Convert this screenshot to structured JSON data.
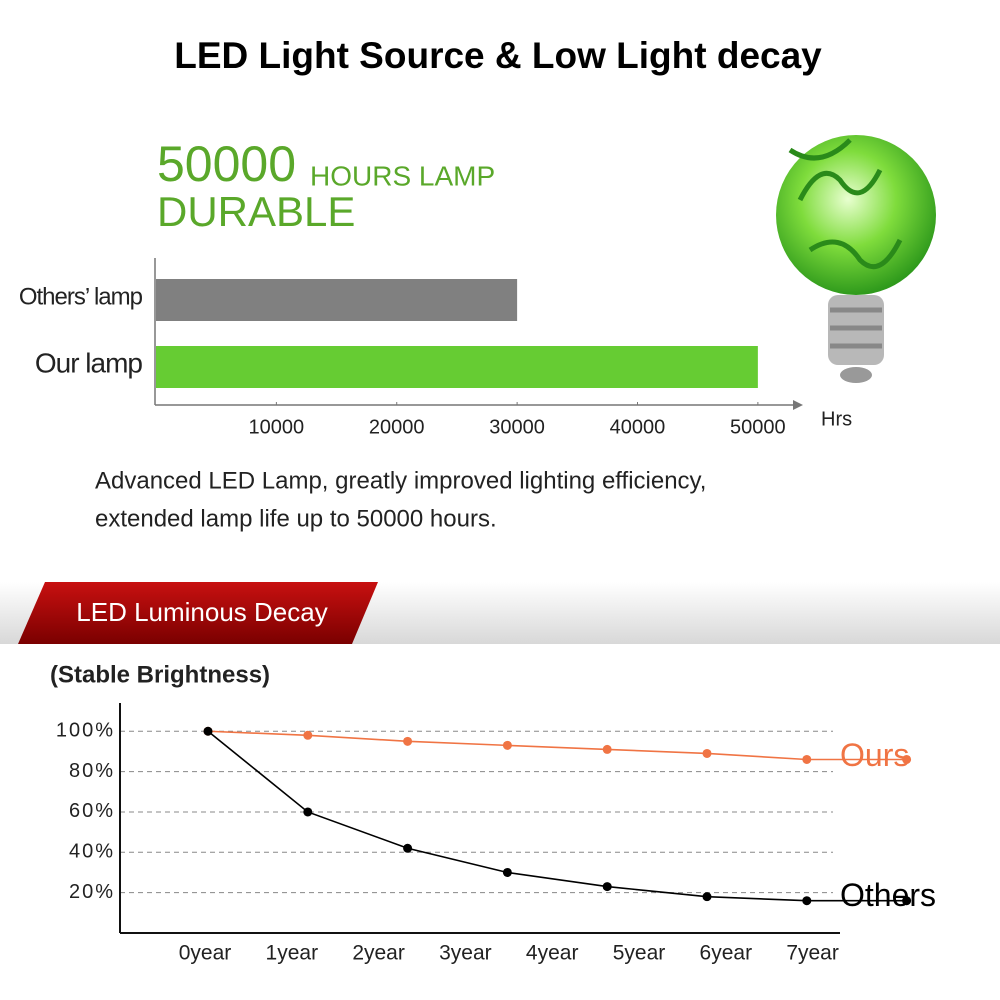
{
  "title": "LED Light Source & Low Light decay",
  "headline": {
    "number": "50000",
    "unit": "HOURS LAMP",
    "tag": "DURABLE"
  },
  "description": [
    "Advanced LED Lamp, greatly improved lighting efficiency,",
    "extended lamp life up to 50000 hours."
  ],
  "section_title": "LED Luminous Decay",
  "chart_data": [
    {
      "type": "hbar",
      "categories": [
        "Others’ lamp",
        "Our lamp"
      ],
      "values": [
        30000,
        50000
      ],
      "colors": [
        "#808080",
        "#66cc33"
      ],
      "xlim": [
        0,
        53500
      ],
      "xticks": [
        10000,
        20000,
        30000,
        40000,
        50000
      ],
      "x_label": "Hrs"
    },
    {
      "type": "line",
      "y_label": "(Stable Brightness)",
      "categories": [
        "0year",
        "1year",
        "2year",
        "3year",
        "4year",
        "5year",
        "6year",
        "7year"
      ],
      "ylim": [
        0,
        114
      ],
      "yticks": [
        {
          "value": 20,
          "label": "20%"
        },
        {
          "value": 40,
          "label": "40%"
        },
        {
          "value": 60,
          "label": "60%"
        },
        {
          "value": 80,
          "label": "80%"
        },
        {
          "value": 100,
          "label": "100%"
        }
      ],
      "grid": true,
      "series": [
        {
          "name": "Ours",
          "color": "#f07444",
          "values": [
            100,
            98,
            95,
            93,
            91,
            89,
            86,
            86
          ]
        },
        {
          "name": "Others",
          "color": "#000000",
          "values": [
            100,
            60,
            42,
            30,
            23,
            18,
            16,
            16
          ]
        }
      ]
    }
  ]
}
